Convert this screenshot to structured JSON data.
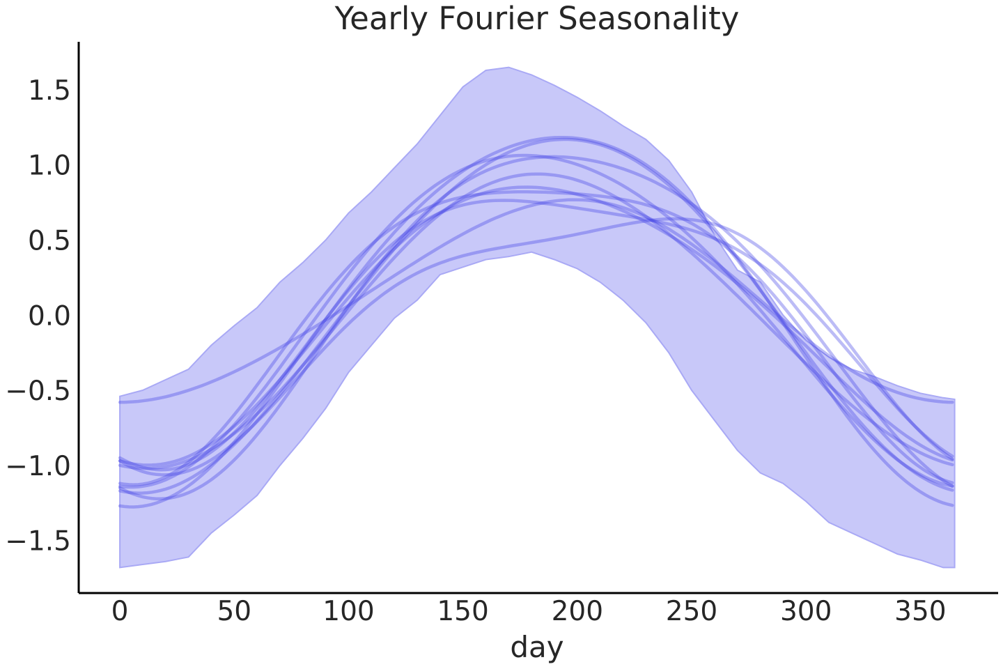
{
  "chart_data": {
    "type": "line",
    "title": "Yearly Fourier Seasonality",
    "xlabel": "day",
    "ylabel": "",
    "xlim": [
      -18,
      384
    ],
    "ylim": [
      -1.85,
      1.82
    ],
    "x_ticks": [
      0,
      50,
      100,
      150,
      200,
      250,
      300,
      350
    ],
    "y_ticks": [
      -1.5,
      -1.0,
      -0.5,
      0.0,
      0.5,
      1.0,
      1.5
    ],
    "x_tick_labels": [
      "0",
      "50",
      "100",
      "150",
      "200",
      "250",
      "300",
      "350"
    ],
    "y_tick_labels": [
      "−1.5",
      "−1.0",
      "−0.5",
      "0.0",
      "0.5",
      "1.0",
      "1.5"
    ],
    "grid": false,
    "legend": "none",
    "colors": {
      "line": "#3f3fe6",
      "band_fill": "#c8c8f9",
      "band_edge": "#a9a9f5",
      "axis": "#000000",
      "text": "#262626"
    },
    "band": {
      "x": [
        0,
        10,
        20,
        30,
        40,
        50,
        60,
        70,
        80,
        90,
        100,
        110,
        120,
        130,
        140,
        150,
        160,
        170,
        180,
        190,
        200,
        210,
        220,
        230,
        240,
        250,
        260,
        270,
        280,
        290,
        300,
        310,
        320,
        330,
        340,
        350,
        360,
        365
      ],
      "upper": [
        -0.54,
        -0.5,
        -0.43,
        -0.36,
        -0.2,
        -0.07,
        0.05,
        0.22,
        0.35,
        0.5,
        0.68,
        0.82,
        0.98,
        1.14,
        1.33,
        1.52,
        1.63,
        1.65,
        1.6,
        1.53,
        1.45,
        1.36,
        1.26,
        1.17,
        1.03,
        0.82,
        0.53,
        0.3,
        0.22,
        0.0,
        -0.17,
        -0.28,
        -0.36,
        -0.41,
        -0.47,
        -0.52,
        -0.55,
        -0.56
      ],
      "lower": [
        -1.68,
        -1.66,
        -1.64,
        -1.61,
        -1.45,
        -1.33,
        -1.2,
        -1.0,
        -0.82,
        -0.62,
        -0.38,
        -0.2,
        -0.02,
        0.1,
        0.27,
        0.32,
        0.37,
        0.39,
        0.42,
        0.37,
        0.31,
        0.22,
        0.1,
        -0.05,
        -0.25,
        -0.5,
        -0.7,
        -0.9,
        -1.05,
        -1.12,
        -1.24,
        -1.38,
        -1.45,
        -1.52,
        -1.59,
        -1.63,
        -1.68,
        -1.68
      ]
    },
    "series": [
      {
        "a0": -0.04,
        "a1": -0.73,
        "b1": -0.35,
        "a2": -0.2,
        "b2": -0.1
      },
      {
        "a0": 0.05,
        "a1": -0.85,
        "b1": -0.2,
        "a2": -0.15,
        "b2": -0.15
      },
      {
        "a0": 0.05,
        "a1": -0.97,
        "b1": -0.08,
        "a2": -0.2,
        "b2": -0.05
      },
      {
        "a0": 0.05,
        "a1": -1.1,
        "b1": -0.28,
        "a2": -0.1,
        "b2": -0.1
      },
      {
        "a0": 0.04,
        "a1": -1.1,
        "b1": -0.02,
        "a2": -0.08,
        "b2": -0.05
      },
      {
        "a0": 0.04,
        "a1": -1.16,
        "b1": -0.2,
        "a2": -0.05,
        "b2": 0.0
      },
      {
        "a0": 0.05,
        "a1": -1.22,
        "b1": -0.15,
        "a2": -0.1,
        "b2": 0.0
      },
      {
        "a0": 0.08,
        "a1": -0.66,
        "b1": -0.1,
        "a2": 0.0,
        "b2": 0.05
      },
      {
        "a0": -0.03,
        "a1": -0.97,
        "b1": -0.1,
        "a2": 0.0,
        "b2": -0.05
      },
      {
        "a0": 0.0,
        "a1": -0.91,
        "b1": -0.1,
        "a2": -0.06,
        "b2": -0.08
      }
    ]
  }
}
